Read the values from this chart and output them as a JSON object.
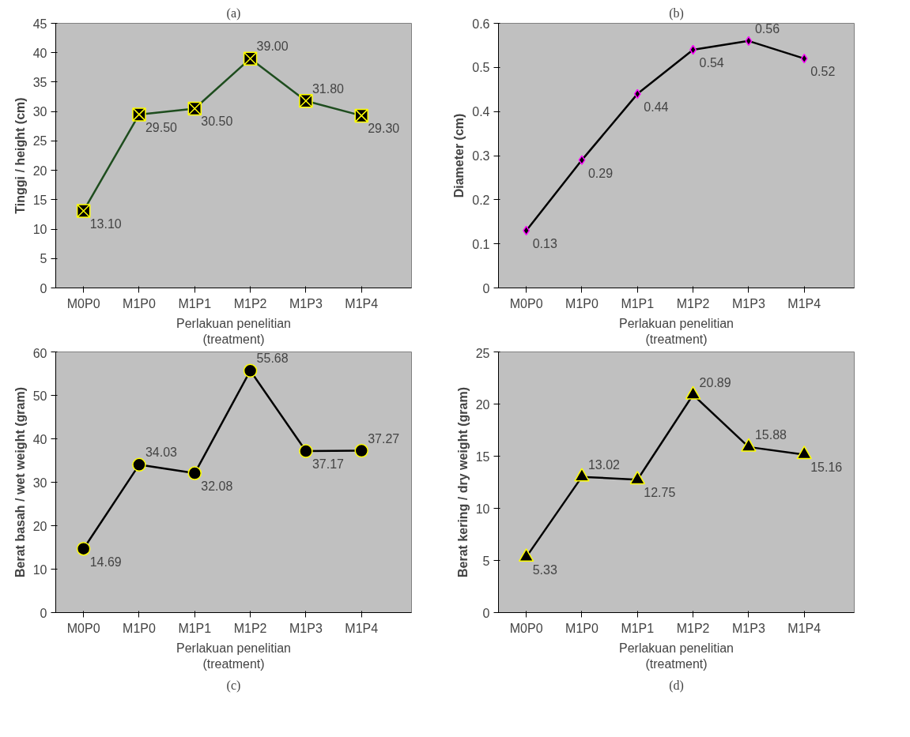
{
  "chart_data": [
    {
      "type": "line",
      "title": "(a)",
      "categories": [
        "M0P0",
        "M1P0",
        "M1P1",
        "M1P2",
        "M1P3",
        "M1P4"
      ],
      "xlabel": "Perlakuan penelitian\n(treatment)",
      "ylabel": "Tinggi / height (cm)",
      "ylim": [
        0,
        45
      ],
      "yticks": [
        0,
        5,
        10,
        15,
        20,
        25,
        30,
        35,
        40,
        45
      ],
      "grid": false,
      "marker": "cross",
      "series": [
        {
          "color": "#1e4d1e",
          "values": [
            13.1,
            29.5,
            30.5,
            39.0,
            31.8,
            29.3
          ],
          "value_labels": [
            "13.10",
            "29.50",
            "30.50",
            "39.00",
            "31.80",
            "29.30"
          ]
        }
      ]
    },
    {
      "type": "line",
      "title": "(b)",
      "categories": [
        "M0P0",
        "M1P0",
        "M1P1",
        "M1P2",
        "M1P3",
        "M1P4"
      ],
      "xlabel": "Perlakuan penelitian\n(treatment)",
      "ylabel": "Diameter (cm)",
      "ylim": [
        0,
        0.6
      ],
      "yticks": [
        0,
        0.1,
        0.2,
        0.3,
        0.4,
        0.5,
        0.6
      ],
      "grid": false,
      "marker": "diamond",
      "series": [
        {
          "color": "#000000",
          "values": [
            0.13,
            0.29,
            0.44,
            0.54,
            0.56,
            0.52
          ],
          "value_labels": [
            "0.13",
            "0.29",
            "0.44",
            "0.54",
            "0.56",
            "0.52"
          ]
        }
      ]
    },
    {
      "type": "line",
      "annotations": [
        "(c)"
      ],
      "categories": [
        "M0P0",
        "M1P0",
        "M1P1",
        "M1P2",
        "M1P3",
        "M1P4"
      ],
      "xlabel": "Perlakuan penelitian\n(treatment)",
      "ylabel": "Berat basah / wet weight (gram)",
      "ylim": [
        0,
        60
      ],
      "yticks": [
        0,
        10,
        20,
        30,
        40,
        50,
        60
      ],
      "grid": false,
      "marker": "circle",
      "series": [
        {
          "color": "#000000",
          "values": [
            14.69,
            34.03,
            32.08,
            55.68,
            37.17,
            37.27
          ],
          "value_labels": [
            "14.69",
            "34.03",
            "32.08",
            "55.68",
            "37.17",
            "37.27"
          ]
        }
      ]
    },
    {
      "type": "line",
      "annotations": [
        "(d)"
      ],
      "categories": [
        "M0P0",
        "M1P0",
        "M1P1",
        "M1P2",
        "M1P3",
        "M1P4"
      ],
      "xlabel": "Perlakuan penelitian\n(treatment)",
      "ylabel": "Berat kering / dry weight (gram)",
      "ylim": [
        0,
        25
      ],
      "yticks": [
        0,
        5,
        10,
        15,
        20,
        25
      ],
      "grid": false,
      "marker": "triangle",
      "series": [
        {
          "color": "#000000",
          "values": [
            5.33,
            13.02,
            12.75,
            20.89,
            15.88,
            15.16
          ],
          "value_labels": [
            "5.33",
            "13.02",
            "12.75",
            "20.89",
            "15.88",
            "15.16"
          ]
        }
      ]
    }
  ]
}
